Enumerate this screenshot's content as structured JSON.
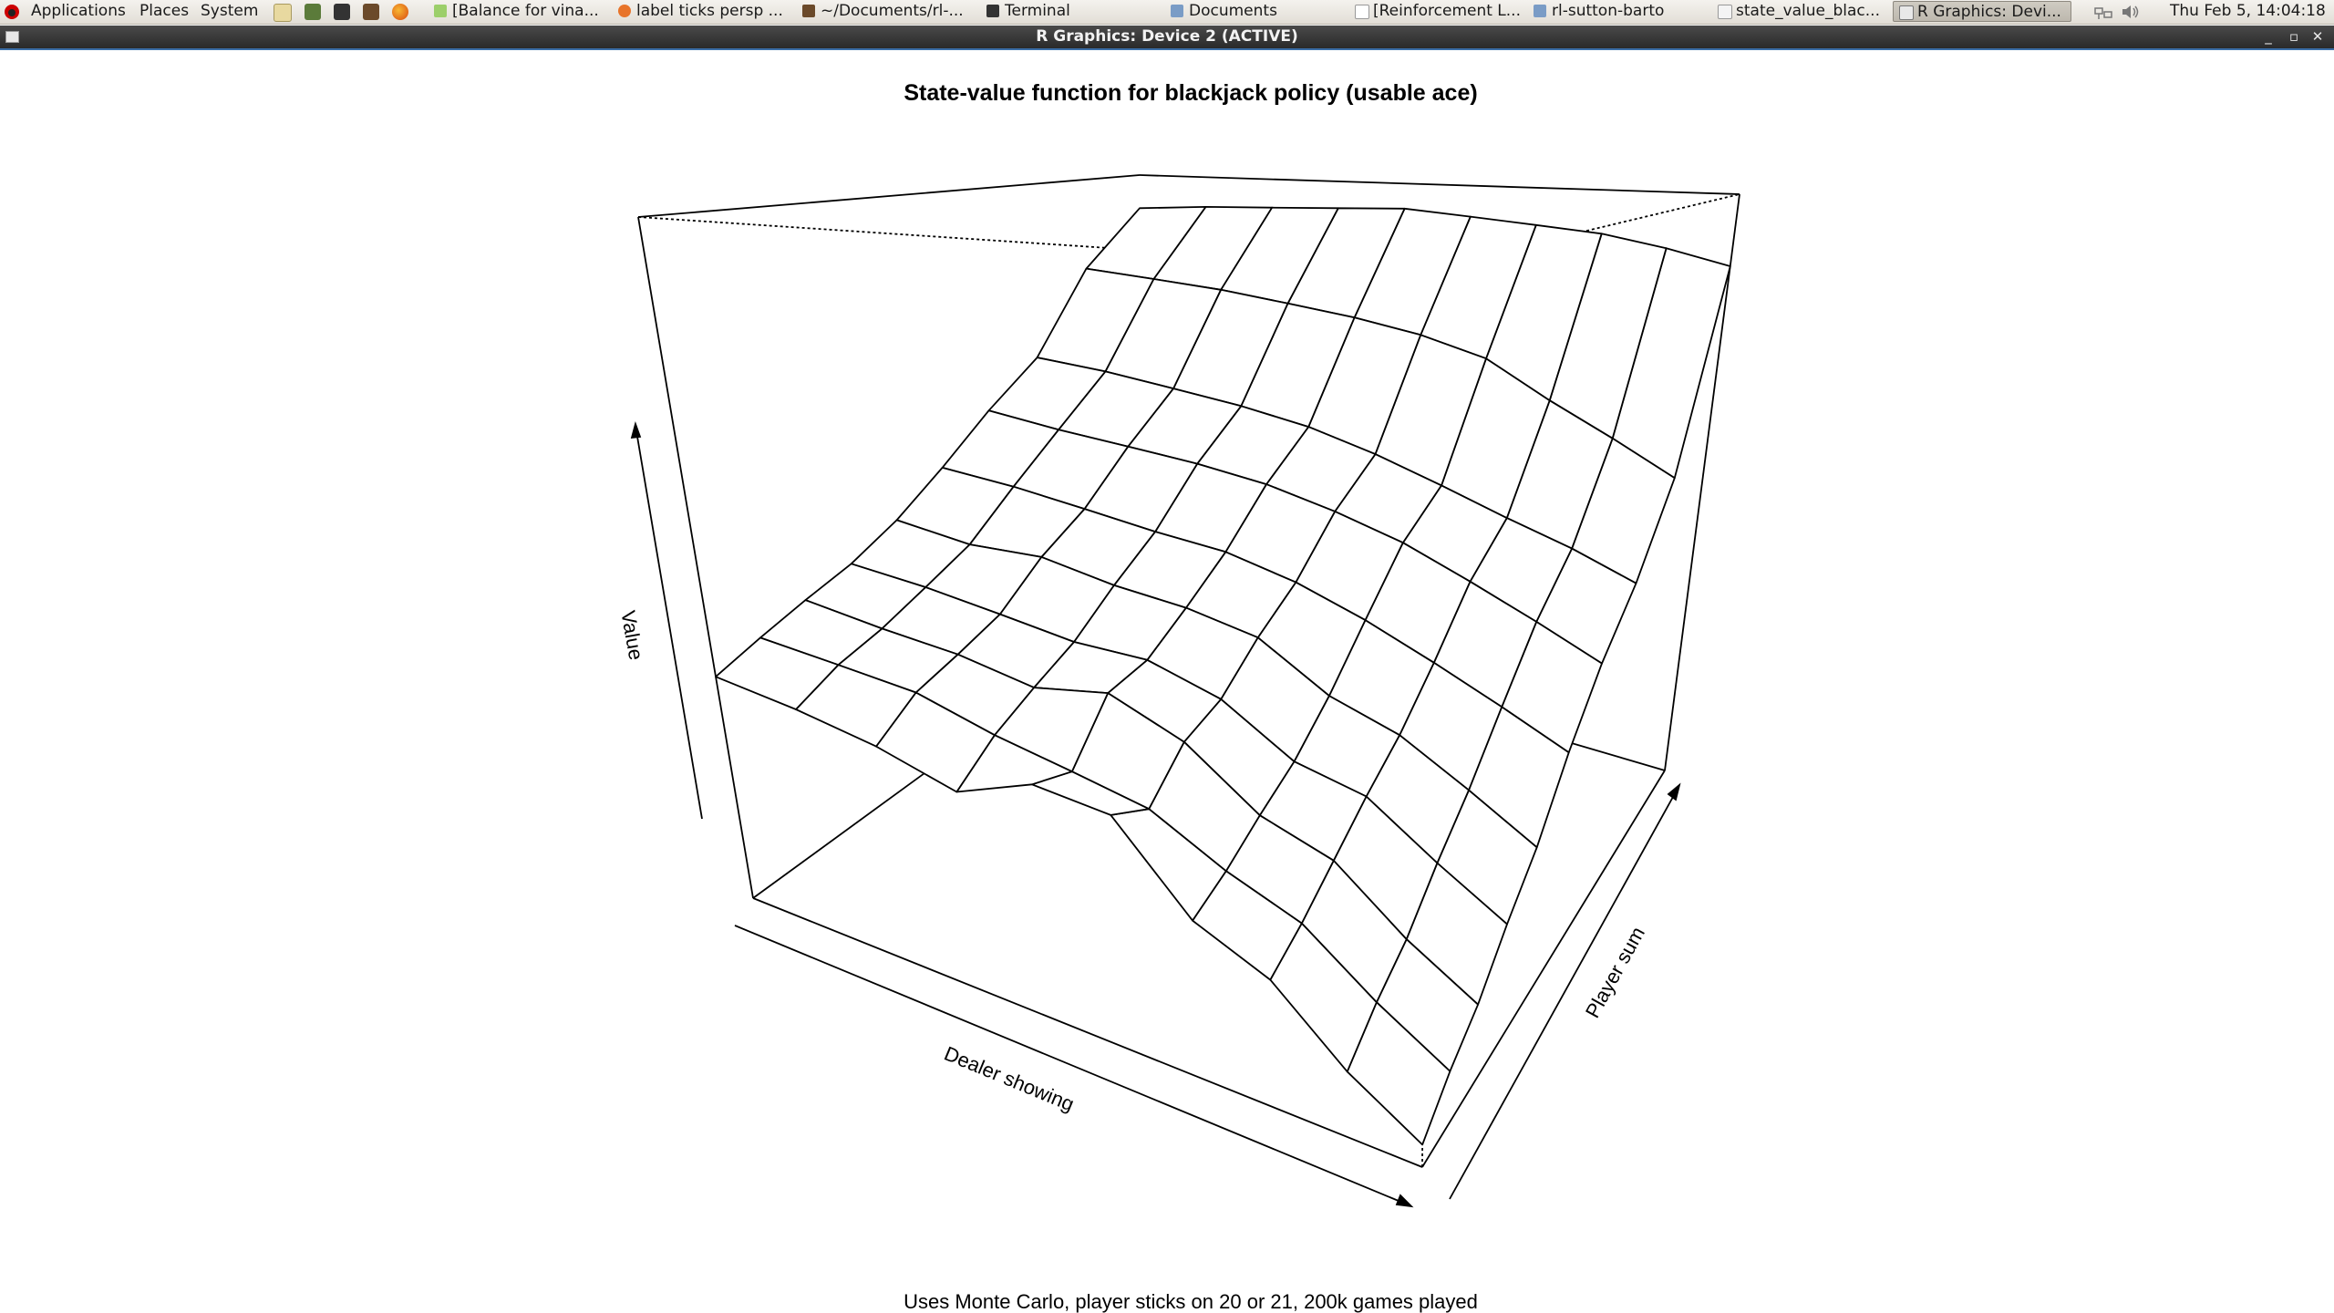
{
  "panel": {
    "menus": [
      "Applications",
      "Places",
      "System"
    ],
    "tasks": [
      {
        "label": "[Balance for vina...",
        "icon": "gedit-icon"
      },
      {
        "label": "label ticks persp ...",
        "icon": "firefox-icon"
      },
      {
        "label": "~/Documents/rl-...",
        "icon": "text-editor-icon"
      },
      {
        "label": "Terminal",
        "icon": "terminal-icon"
      },
      {
        "label": "Documents",
        "icon": "folder-icon"
      },
      {
        "label": "[Reinforcement L...",
        "icon": "document-icon"
      },
      {
        "label": "rl-sutton-barto",
        "icon": "folder-icon"
      },
      {
        "label": "state_value_blac...",
        "icon": "image-icon"
      },
      {
        "label": "R Graphics: Devi...",
        "icon": "window-icon",
        "active": true
      }
    ],
    "clock": "Thu Feb  5, 14:04:18"
  },
  "window": {
    "title": "R Graphics: Device 2 (ACTIVE)"
  },
  "chart_data": {
    "type": "surface",
    "title": "State-value function for blackjack policy (usable ace)",
    "subtitle": "Uses Monte Carlo, player sticks on 20 or 21, 200k games played",
    "xlabel": "Dealer showing",
    "ylabel": "Player sum",
    "zlabel": "Value",
    "view": "perspective, wireframe (persp)",
    "grid_rows": 10,
    "grid_cols": 10,
    "z": [
      [
        -0.35,
        -0.38,
        -0.42,
        -0.48,
        -0.4,
        -0.42,
        -0.62,
        -0.7,
        -0.85,
        -0.95
      ],
      [
        -0.3,
        -0.32,
        -0.34,
        -0.4,
        -0.44,
        -0.48,
        -0.58,
        -0.65,
        -0.78,
        -0.88
      ],
      [
        -0.25,
        -0.28,
        -0.3,
        -0.34,
        -0.3,
        -0.38,
        -0.52,
        -0.58,
        -0.72,
        -0.82
      ],
      [
        -0.2,
        -0.22,
        -0.25,
        -0.28,
        -0.28,
        -0.34,
        -0.46,
        -0.5,
        -0.62,
        -0.72
      ],
      [
        -0.12,
        -0.15,
        -0.14,
        -0.18,
        -0.2,
        -0.24,
        -0.36,
        -0.42,
        -0.52,
        -0.62
      ],
      [
        0.0,
        -0.02,
        -0.05,
        -0.08,
        -0.1,
        -0.15,
        -0.22,
        -0.3,
        -0.38,
        -0.46
      ],
      [
        0.15,
        0.12,
        0.1,
        0.08,
        0.05,
        0.0,
        -0.06,
        -0.14,
        -0.22,
        -0.3
      ],
      [
        0.3,
        0.28,
        0.25,
        0.22,
        0.18,
        0.12,
        0.05,
        -0.02,
        -0.08,
        -0.15
      ],
      [
        0.62,
        0.6,
        0.58,
        0.55,
        0.52,
        0.48,
        0.42,
        0.3,
        0.2,
        0.1
      ],
      [
        0.85,
        0.87,
        0.88,
        0.89,
        0.9,
        0.88,
        0.86,
        0.84,
        0.8,
        0.75
      ]
    ]
  }
}
